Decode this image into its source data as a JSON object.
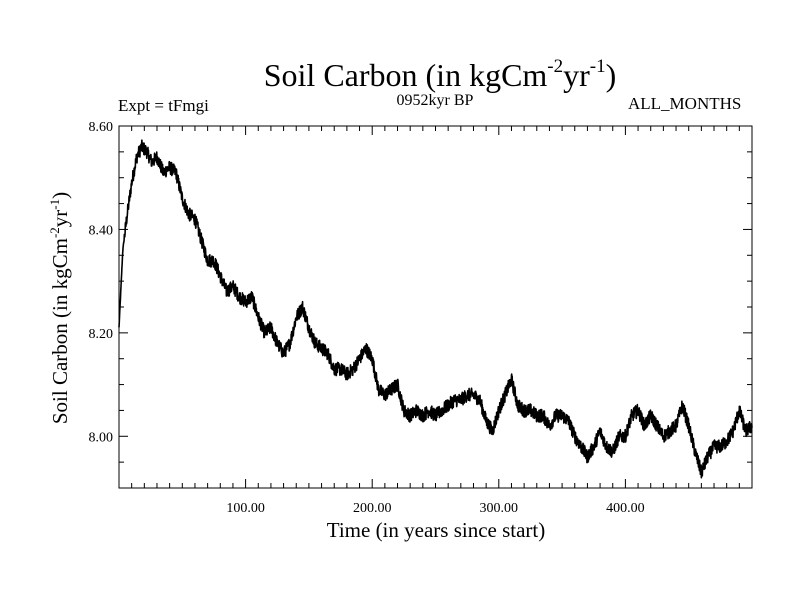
{
  "chart_data": {
    "type": "line",
    "title": "Soil Carbon (in kgCm",
    "title_sup1": "-2",
    "title_mid": "yr",
    "title_sup2": "-1",
    "title_end": ")",
    "subtitle_left": "Expt = tFmgi",
    "subtitle_center": "0952kyr BP",
    "subtitle_right": "ALL_MONTHS",
    "xlabel": "Time (in years since start)",
    "ylabel": "Soil Carbon (in kgCm",
    "ylabel_sup1": "-2",
    "ylabel_mid": "yr",
    "ylabel_sup2": "-1",
    "ylabel_end": ")",
    "xlim": [
      0,
      500
    ],
    "ylim": [
      7.9,
      8.6
    ],
    "xticks": [
      100,
      200,
      300,
      400
    ],
    "xtick_labels": [
      "100.00",
      "200.00",
      "300.00",
      "400.00"
    ],
    "yticks": [
      8.0,
      8.2,
      8.4,
      8.6
    ],
    "ytick_labels": [
      "8.00",
      "8.20",
      "8.40",
      "8.60"
    ],
    "series": [
      {
        "name": "Soil Carbon",
        "color": "#000000",
        "x": [
          0,
          3,
          6,
          10,
          14,
          18,
          22,
          26,
          30,
          35,
          40,
          45,
          50,
          55,
          60,
          65,
          70,
          75,
          80,
          85,
          90,
          95,
          100,
          105,
          110,
          115,
          120,
          125,
          130,
          135,
          140,
          145,
          150,
          155,
          160,
          165,
          170,
          175,
          180,
          185,
          190,
          195,
          200,
          205,
          210,
          215,
          220,
          225,
          230,
          235,
          240,
          245,
          250,
          255,
          260,
          265,
          270,
          275,
          280,
          285,
          290,
          295,
          300,
          305,
          310,
          315,
          320,
          325,
          330,
          335,
          340,
          345,
          350,
          355,
          360,
          365,
          370,
          375,
          380,
          385,
          390,
          395,
          400,
          405,
          410,
          415,
          420,
          425,
          430,
          435,
          440,
          445,
          450,
          455,
          460,
          465,
          470,
          475,
          480,
          485,
          490,
          495,
          500
        ],
        "values": [
          8.21,
          8.36,
          8.42,
          8.49,
          8.54,
          8.56,
          8.55,
          8.53,
          8.54,
          8.51,
          8.52,
          8.51,
          8.46,
          8.43,
          8.42,
          8.38,
          8.34,
          8.34,
          8.31,
          8.28,
          8.29,
          8.27,
          8.26,
          8.27,
          8.23,
          8.2,
          8.21,
          8.18,
          8.16,
          8.18,
          8.23,
          8.25,
          8.21,
          8.18,
          8.17,
          8.16,
          8.13,
          8.13,
          8.12,
          8.13,
          8.15,
          8.17,
          8.15,
          8.09,
          8.08,
          8.09,
          8.1,
          8.05,
          8.04,
          8.05,
          8.04,
          8.05,
          8.04,
          8.05,
          8.06,
          8.07,
          8.07,
          8.08,
          8.08,
          8.07,
          8.03,
          8.01,
          8.05,
          8.08,
          8.11,
          8.06,
          8.05,
          8.05,
          8.04,
          8.04,
          8.02,
          8.04,
          8.04,
          8.03,
          8.0,
          7.98,
          7.96,
          7.98,
          8.01,
          7.98,
          7.97,
          8.0,
          8.0,
          8.04,
          8.05,
          8.02,
          8.04,
          8.02,
          8.0,
          8.01,
          8.02,
          8.06,
          8.02,
          7.97,
          7.93,
          7.96,
          7.98,
          7.98,
          7.99,
          8.01,
          8.05,
          8.01,
          8.02
        ]
      }
    ]
  }
}
